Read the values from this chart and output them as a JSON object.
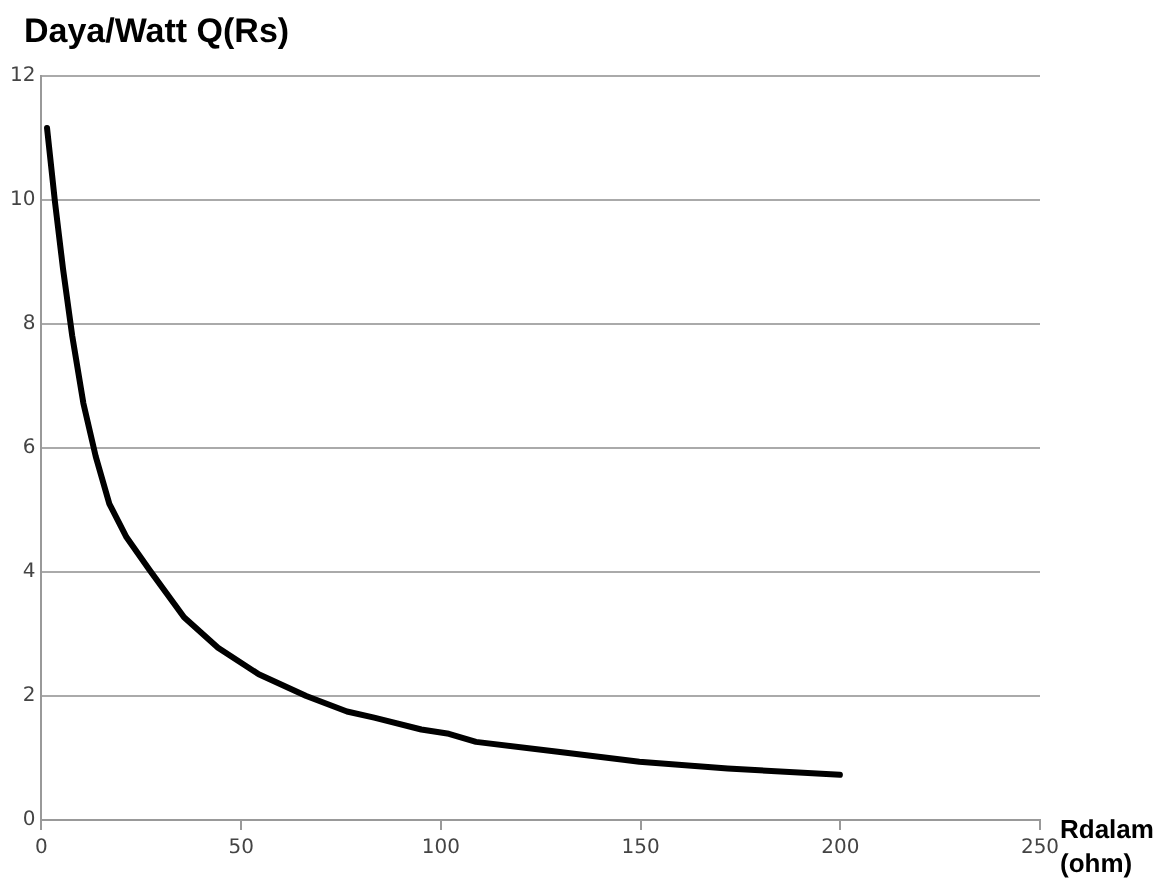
{
  "chart_data": {
    "type": "line",
    "title": "Daya/Watt Q(Rs)",
    "xlabel": "Rdalam (ohm)",
    "series": [
      {
        "color": "#000000",
        "x": [
          1.4,
          3.4,
          5.4,
          7.7,
          10.5,
          13.6,
          17,
          21.3,
          27.2,
          35.7,
          44.2,
          54.4,
          66.3,
          76.5,
          83.3,
          95.1,
          102,
          108.8,
          129.3,
          149.7,
          171.8,
          199.9
        ],
        "values": [
          11.16,
          9.96,
          8.89,
          7.81,
          6.72,
          5.86,
          5.1,
          4.56,
          4.02,
          3.27,
          2.78,
          2.35,
          2.0,
          1.75,
          1.65,
          1.46,
          1.39,
          1.26,
          1.1,
          0.94,
          0.83,
          0.73
        ]
      }
    ],
    "xlim": [
      0,
      250
    ],
    "xticks": [
      0,
      50,
      100,
      150,
      200,
      250
    ],
    "ylim": [
      0,
      12
    ],
    "yticks": [
      0,
      2,
      4,
      6,
      8,
      10,
      12
    ],
    "grid": "y",
    "legend": false,
    "marker": "none",
    "line_style": "solid"
  }
}
